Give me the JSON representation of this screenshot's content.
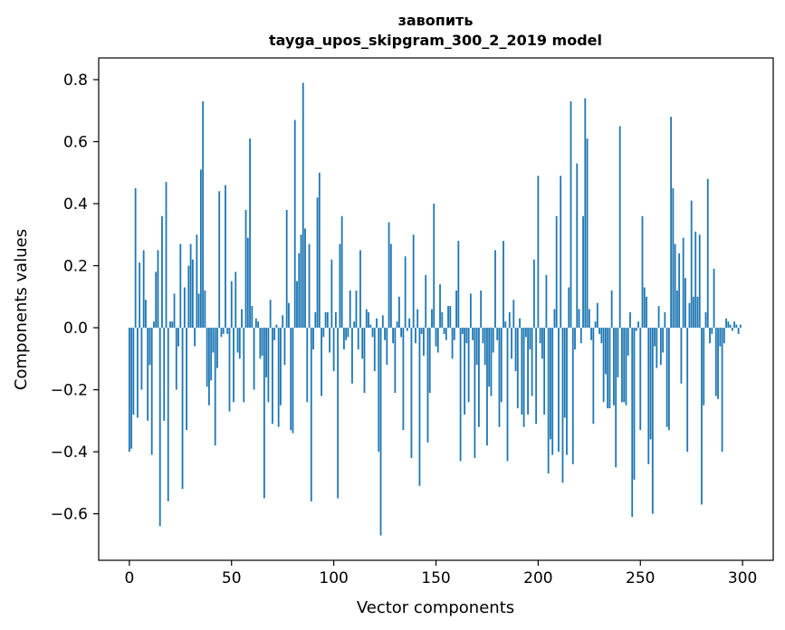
{
  "chart_data": {
    "type": "bar",
    "title": "завопить",
    "subtitle": "tayga_upos_skipgram_300_2_2019 model",
    "xlabel": "Vector components",
    "ylabel": "Components values",
    "xlim": [
      -15,
      315
    ],
    "ylim": [
      -0.75,
      0.87
    ],
    "xticks": [
      0,
      50,
      100,
      150,
      200,
      250,
      300
    ],
    "yticks": [
      -0.6,
      -0.4,
      -0.2,
      0.0,
      0.2,
      0.4,
      0.6,
      0.8
    ],
    "xtick_labels": [
      "0",
      "50",
      "100",
      "150",
      "200",
      "250",
      "300"
    ],
    "ytick_labels": [
      "−0.6",
      "−0.4",
      "−0.2",
      "0.0",
      "0.2",
      "0.4",
      "0.6",
      "0.8"
    ],
    "bar_color": "#1f77b4",
    "grid": false,
    "legend": "none",
    "values": [
      -0.4,
      -0.39,
      -0.28,
      0.45,
      -0.29,
      0.21,
      -0.2,
      0.25,
      0.09,
      -0.3,
      -0.12,
      -0.41,
      0.02,
      0.18,
      0.25,
      -0.64,
      0.36,
      -0.3,
      0.47,
      -0.56,
      0.02,
      0.02,
      0.11,
      -0.2,
      -0.06,
      0.27,
      -0.52,
      0.13,
      -0.33,
      0.2,
      0.27,
      0.22,
      -0.06,
      0.3,
      0.11,
      0.51,
      0.73,
      0.12,
      -0.19,
      -0.25,
      -0.17,
      -0.08,
      -0.38,
      -0.13,
      0.44,
      -0.03,
      -0.02,
      0.46,
      -0.02,
      -0.27,
      0.15,
      -0.24,
      0.18,
      -0.08,
      -0.1,
      0.06,
      -0.24,
      0.38,
      0.29,
      0.61,
      0.07,
      -0.2,
      0.03,
      0.02,
      -0.1,
      -0.09,
      -0.55,
      -0.16,
      -0.24,
      0.09,
      -0.31,
      -0.04,
      0.01,
      -0.32,
      -0.25,
      0.04,
      -0.12,
      0.38,
      0.08,
      -0.33,
      -0.34,
      0.67,
      0.15,
      0.24,
      0.3,
      0.79,
      0.32,
      -0.24,
      0.27,
      -0.56,
      -0.07,
      0.05,
      0.42,
      0.5,
      -0.22,
      -0.03,
      0.05,
      0.05,
      -0.08,
      0.22,
      -0.14,
      0.05,
      -0.55,
      0.27,
      0.36,
      -0.07,
      -0.04,
      -0.03,
      0.12,
      -0.18,
      0.02,
      0.12,
      -0.07,
      0.25,
      -0.1,
      -0.21,
      0.06,
      0.05,
      0.01,
      -0.03,
      -0.14,
      0.03,
      -0.4,
      -0.67,
      0.04,
      -0.04,
      -0.12,
      0.34,
      0.27,
      -0.05,
      -0.21,
      0.02,
      0.1,
      -0.03,
      -0.33,
      0.23,
      -0.01,
      0.03,
      -0.42,
      0.3,
      -0.05,
      0.06,
      -0.51,
      -0.02,
      -0.09,
      0.17,
      -0.37,
      -0.21,
      0.06,
      0.4,
      -0.06,
      -0.08,
      0.14,
      0.05,
      -0.02,
      -0.04,
      0.07,
      0.07,
      -0.1,
      -0.04,
      0.12,
      0.28,
      -0.43,
      -0.02,
      -0.28,
      -0.05,
      -0.24,
      0.11,
      -0.04,
      -0.42,
      -0.12,
      -0.32,
      0.12,
      -0.05,
      -0.12,
      -0.38,
      -0.19,
      -0.22,
      -0.08,
      0.25,
      -0.04,
      -0.32,
      -0.24,
      0.28,
      0.02,
      -0.43,
      0.05,
      -0.1,
      0.09,
      -0.14,
      -0.26,
      0.03,
      -0.28,
      -0.32,
      -0.03,
      -0.28,
      -0.07,
      -0.22,
      0.22,
      -0.31,
      0.49,
      -0.05,
      -0.1,
      -0.28,
      0.17,
      -0.47,
      -0.36,
      -0.41,
      0.06,
      0.36,
      -0.4,
      0.49,
      -0.5,
      -0.29,
      -0.41,
      0.13,
      0.73,
      -0.44,
      -0.07,
      0.53,
      0.06,
      -0.05,
      0.36,
      0.74,
      0.61,
      0.06,
      -0.04,
      -0.31,
      0.02,
      0.08,
      -0.02,
      -0.05,
      -0.24,
      -0.15,
      -0.26,
      -0.26,
      0.12,
      -0.25,
      -0.45,
      -0.16,
      0.65,
      -0.24,
      -0.24,
      -0.25,
      -0.09,
      0.05,
      -0.61,
      -0.49,
      -0.01,
      0.02,
      -0.33,
      0.36,
      0.13,
      0.1,
      -0.44,
      -0.36,
      -0.6,
      -0.06,
      -0.13,
      0.07,
      -0.12,
      -0.08,
      0.05,
      -0.32,
      -0.33,
      0.68,
      0.45,
      0.27,
      0.12,
      0.24,
      -0.18,
      0.29,
      0.16,
      -0.4,
      0.08,
      0.41,
      0.1,
      0.31,
      0.1,
      0.3,
      -0.57,
      -0.25,
      0.05,
      0.48,
      -0.05,
      -0.02,
      0.19,
      -0.22,
      -0.23,
      -0.06,
      -0.4,
      -0.05,
      0.03,
      0.02,
      0.01,
      -0.01,
      0.02,
      0.01,
      -0.02,
      0.01
    ]
  }
}
